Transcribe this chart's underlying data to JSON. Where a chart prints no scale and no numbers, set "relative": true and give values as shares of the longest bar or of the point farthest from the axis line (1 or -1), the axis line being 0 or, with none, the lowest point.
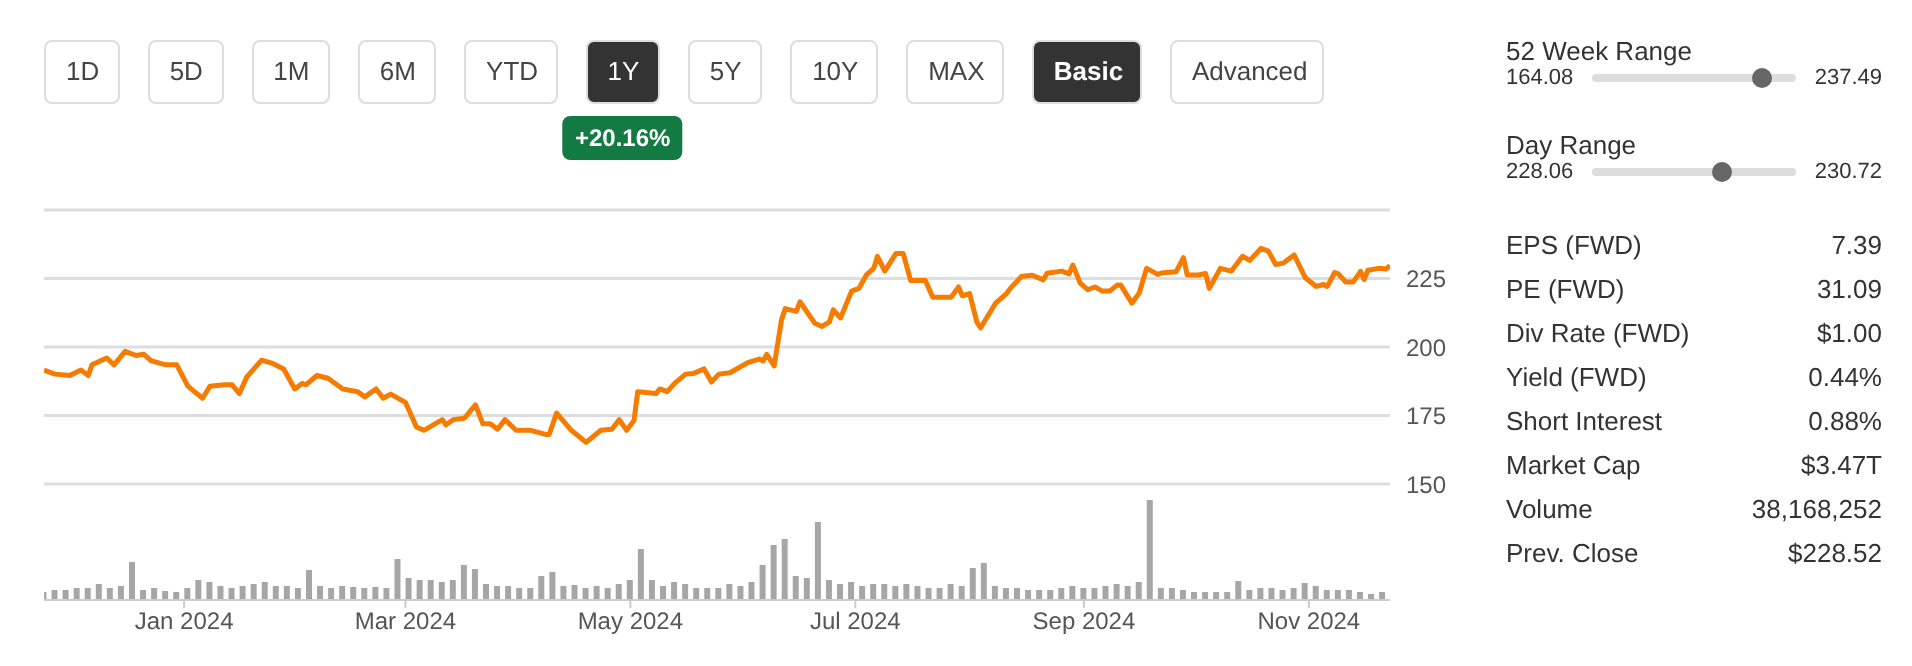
{
  "chart_data": [
    {
      "type": "other",
      "annotations": [
        "1D",
        "5D",
        "1M",
        "6M",
        "YTD",
        "1Y",
        "5Y",
        "10Y",
        "MAX",
        "Basic",
        "Advanced",
        "+20.16%"
      ]
    },
    {
      "type": "line",
      "color": "#f57c00",
      "x": [
        "2023-11-24",
        "2023-11-27",
        "2023-12-01",
        "2023-12-04",
        "2023-12-06",
        "2023-12-07",
        "2023-12-11",
        "2023-12-13",
        "2023-12-16",
        "2023-12-19",
        "2023-12-21",
        "2023-12-23",
        "2023-12-27",
        "2023-12-30",
        "2024-01-02",
        "2024-01-06",
        "2024-01-08",
        "2024-01-12",
        "2024-01-14",
        "2024-01-16",
        "2024-01-18",
        "2024-01-22",
        "2024-01-25",
        "2024-01-28",
        "2024-01-31",
        "2024-02-02",
        "2024-02-03",
        "2024-02-06",
        "2024-02-09",
        "2024-02-13",
        "2024-02-17",
        "2024-02-19",
        "2024-02-22",
        "2024-02-24",
        "2024-02-26",
        "2024-03-01",
        "2024-03-04",
        "2024-03-06",
        "2024-03-11",
        "2024-03-12",
        "2024-03-14",
        "2024-03-17",
        "2024-03-20",
        "2024-03-22",
        "2024-03-24",
        "2024-03-26",
        "2024-03-28",
        "2024-03-31",
        "2024-04-04",
        "2024-04-08",
        "2024-04-09",
        "2024-04-11",
        "2024-04-15",
        "2024-04-19",
        "2024-04-23",
        "2024-04-26",
        "2024-04-28",
        "2024-04-30",
        "2024-05-02",
        "2024-05-03",
        "2024-05-08",
        "2024-05-09",
        "2024-05-11",
        "2024-05-13",
        "2024-05-16",
        "2024-05-18",
        "2024-05-21",
        "2024-05-23",
        "2024-05-25",
        "2024-05-28",
        "2024-06-02",
        "2024-06-05",
        "2024-06-06",
        "2024-06-07",
        "2024-06-09",
        "2024-06-11",
        "2024-06-12",
        "2024-06-15",
        "2024-06-16",
        "2024-06-20",
        "2024-06-22",
        "2024-06-24",
        "2024-06-25",
        "2024-06-27",
        "2024-06-30",
        "2024-07-02",
        "2024-07-04",
        "2024-07-06",
        "2024-07-07",
        "2024-07-09",
        "2024-07-12",
        "2024-07-14",
        "2024-07-16",
        "2024-07-20",
        "2024-07-22",
        "2024-07-27",
        "2024-07-29",
        "2024-07-30",
        "2024-08-01",
        "2024-08-03",
        "2024-08-04",
        "2024-08-08",
        "2024-08-11",
        "2024-08-12",
        "2024-08-15",
        "2024-08-18",
        "2024-08-21",
        "2024-08-22",
        "2024-08-26",
        "2024-08-28",
        "2024-08-29",
        "2024-08-31",
        "2024-09-02",
        "2024-09-04",
        "2024-09-06",
        "2024-09-08",
        "2024-09-10",
        "2024-09-11",
        "2024-09-14",
        "2024-09-16",
        "2024-09-18",
        "2024-09-21",
        "2024-09-22",
        "2024-09-26",
        "2024-09-28",
        "2024-09-29",
        "2024-10-02",
        "2024-10-04",
        "2024-10-05",
        "2024-10-08",
        "2024-10-11",
        "2024-10-14",
        "2024-10-16",
        "2024-10-19",
        "2024-10-21",
        "2024-10-23",
        "2024-10-25",
        "2024-10-28",
        "2024-10-31",
        "2024-11-03",
        "2024-11-05",
        "2024-11-06",
        "2024-11-08",
        "2024-11-09",
        "2024-11-11",
        "2024-11-13",
        "2024-11-15",
        "2024-11-16",
        "2024-11-17",
        "2024-11-20",
        "2024-11-22",
        "2024-11-23"
      ],
      "values": [
        191.6,
        190.1,
        189.6,
        191.6,
        189.6,
        193.5,
        196,
        193.5,
        198.4,
        196.9,
        197.4,
        195,
        193.5,
        193.5,
        185.7,
        181.3,
        185.7,
        186.2,
        186.2,
        183,
        189.1,
        195.2,
        194,
        192,
        184.7,
        186.7,
        186.2,
        189.6,
        188.6,
        184.7,
        183.7,
        181.8,
        184.7,
        181.3,
        182.8,
        179.8,
        170.8,
        169.6,
        173.5,
        171.6,
        173.5,
        174,
        178.9,
        172,
        172,
        170,
        173.5,
        169.6,
        169.6,
        168.1,
        168.1,
        175.9,
        169.6,
        165.2,
        169.6,
        170,
        173.5,
        169.6,
        173.2,
        183.7,
        183,
        184.7,
        183.7,
        186.7,
        190.1,
        190.3,
        192,
        187.2,
        190.1,
        190.6,
        194.4,
        195.6,
        194.9,
        197.3,
        193.1,
        209.9,
        214,
        213,
        216.5,
        208.7,
        207.5,
        209.2,
        213.6,
        210.6,
        220.4,
        221.4,
        226.3,
        228.7,
        233.1,
        227.7,
        234.1,
        234.1,
        224.3,
        224.3,
        218.2,
        218.2,
        221.9,
        218.7,
        219.5,
        209,
        207,
        215.9,
        219.5,
        221.3,
        225.7,
        226.2,
        224.5,
        226.9,
        227.7,
        226.7,
        229.9,
        223.3,
        220.9,
        221.9,
        220.4,
        220.4,
        222.6,
        222.6,
        216,
        219.7,
        228.7,
        226.5,
        227,
        227.5,
        232.6,
        226.3,
        226.3,
        226.8,
        221.4,
        228.7,
        227.7,
        233.1,
        231.6,
        236,
        235,
        230.1,
        230.6,
        233.6,
        225.3,
        222.1,
        222.8,
        222.1,
        227.2,
        226.7,
        223.7,
        223.7,
        227.6,
        224.6,
        228,
        228.7,
        228.5,
        229.7
      ],
      "xlim": [
        "2023-11-24",
        "2024-11-23"
      ],
      "ylim": [
        150,
        250
      ],
      "yticks": [
        150,
        175,
        200,
        225,
        {
          "value": 250,
          "label": null
        }
      ],
      "grid": "y",
      "tick_labels": "y"
    },
    {
      "type": "bar",
      "relative": true,
      "color": "#a6a6a6",
      "x": [
        "2023-11-24",
        "2023-11-27",
        "2023-11-30",
        "2023-12-03",
        "2023-12-06",
        "2023-12-09",
        "2023-12-12",
        "2023-12-15",
        "2023-12-18",
        "2023-12-21",
        "2023-12-24",
        "2023-12-27",
        "2023-12-30",
        "2024-01-02",
        "2024-01-05",
        "2024-01-08",
        "2024-01-11",
        "2024-01-14",
        "2024-01-17",
        "2024-01-20",
        "2024-01-23",
        "2024-01-26",
        "2024-01-29",
        "2024-02-01",
        "2024-02-04",
        "2024-02-07",
        "2024-02-10",
        "2024-02-13",
        "2024-02-16",
        "2024-02-19",
        "2024-02-22",
        "2024-02-25",
        "2024-02-28",
        "2024-03-02",
        "2024-03-05",
        "2024-03-08",
        "2024-03-11",
        "2024-03-14",
        "2024-03-17",
        "2024-03-20",
        "2024-03-23",
        "2024-03-26",
        "2024-03-29",
        "2024-04-01",
        "2024-04-04",
        "2024-04-07",
        "2024-04-10",
        "2024-04-13",
        "2024-04-16",
        "2024-04-19",
        "2024-04-22",
        "2024-04-25",
        "2024-04-28",
        "2024-05-01",
        "2024-05-04",
        "2024-05-07",
        "2024-05-10",
        "2024-05-13",
        "2024-05-16",
        "2024-05-19",
        "2024-05-22",
        "2024-05-25",
        "2024-05-28",
        "2024-05-31",
        "2024-06-03",
        "2024-06-06",
        "2024-06-09",
        "2024-06-12",
        "2024-06-15",
        "2024-06-18",
        "2024-06-21",
        "2024-06-24",
        "2024-06-27",
        "2024-06-30",
        "2024-07-03",
        "2024-07-06",
        "2024-07-09",
        "2024-07-12",
        "2024-07-15",
        "2024-07-18",
        "2024-07-21",
        "2024-07-24",
        "2024-07-27",
        "2024-07-30",
        "2024-08-02",
        "2024-08-05",
        "2024-08-08",
        "2024-08-11",
        "2024-08-14",
        "2024-08-17",
        "2024-08-20",
        "2024-08-23",
        "2024-08-26",
        "2024-08-29",
        "2024-09-01",
        "2024-09-04",
        "2024-09-07",
        "2024-09-10",
        "2024-09-13",
        "2024-09-16",
        "2024-09-19",
        "2024-09-22",
        "2024-09-25",
        "2024-09-28",
        "2024-10-01",
        "2024-10-04",
        "2024-10-07",
        "2024-10-10",
        "2024-10-13",
        "2024-10-16",
        "2024-10-19",
        "2024-10-22",
        "2024-10-25",
        "2024-10-28",
        "2024-10-31",
        "2024-11-03",
        "2024-11-06",
        "2024-11-09",
        "2024-11-12",
        "2024-11-15",
        "2024-11-18",
        "2024-11-21"
      ],
      "values": [
        0.08,
        0.1,
        0.1,
        0.12,
        0.12,
        0.16,
        0.12,
        0.14,
        0.38,
        0.1,
        0.12,
        0.09,
        0.08,
        0.12,
        0.2,
        0.18,
        0.14,
        0.12,
        0.14,
        0.16,
        0.18,
        0.14,
        0.14,
        0.12,
        0.3,
        0.14,
        0.12,
        0.14,
        0.13,
        0.12,
        0.13,
        0.12,
        0.41,
        0.22,
        0.2,
        0.2,
        0.18,
        0.2,
        0.35,
        0.31,
        0.16,
        0.14,
        0.14,
        0.12,
        0.12,
        0.24,
        0.28,
        0.14,
        0.15,
        0.12,
        0.14,
        0.12,
        0.16,
        0.2,
        0.51,
        0.2,
        0.14,
        0.18,
        0.16,
        0.12,
        0.12,
        0.12,
        0.16,
        0.14,
        0.18,
        0.35,
        0.55,
        0.61,
        0.24,
        0.22,
        0.78,
        0.2,
        0.16,
        0.18,
        0.14,
        0.16,
        0.16,
        0.14,
        0.16,
        0.14,
        0.12,
        0.12,
        0.16,
        0.14,
        0.32,
        0.37,
        0.14,
        0.12,
        0.12,
        0.1,
        0.1,
        0.1,
        0.12,
        0.14,
        0.12,
        0.12,
        0.14,
        0.16,
        0.14,
        0.18,
        1,
        0.12,
        0.12,
        0.1,
        0.08,
        0.08,
        0.08,
        0.08,
        0.19,
        0.1,
        0.12,
        0.12,
        0.1,
        0.12,
        0.17,
        0.14,
        0.1,
        0.1,
        0.1,
        0.08,
        0.06,
        0.08
      ],
      "xlim": [
        "2023-11-24",
        "2024-11-23"
      ],
      "xticks": [
        {
          "value": "2024-01-01",
          "label": "Jan 2024"
        },
        {
          "value": "2024-03-01",
          "label": "Mar 2024"
        },
        {
          "value": "2024-05-01",
          "label": "May 2024"
        },
        {
          "value": "2024-07-01",
          "label": "Jul 2024"
        },
        {
          "value": "2024-09-01",
          "label": "Sep 2024"
        },
        {
          "value": "2024-11-01",
          "label": "Nov 2024"
        }
      ],
      "tick_labels": "x"
    },
    {
      "type": "other",
      "annotations": [
        "52 Week Range",
        "164.08",
        "237.49",
        "Day Range",
        "228.06",
        "230.72",
        "EPS (FWD)",
        "7.39",
        "PE (FWD)",
        "31.09",
        "Div Rate (FWD)",
        "$1.00",
        "Yield (FWD)",
        "0.44%",
        "Short Interest",
        "0.88%",
        "Market Cap",
        "$3.47T",
        "Volume",
        "38,168,252",
        "Prev. Close",
        "$228.52"
      ]
    }
  ]
}
